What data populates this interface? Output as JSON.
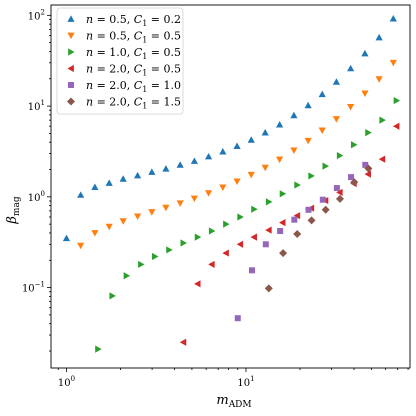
{
  "chart_data": {
    "type": "scatter",
    "title": "",
    "xlabel": "m_ADM",
    "ylabel": "β_mag",
    "xscale": "log",
    "yscale": "log",
    "xlim": [
      0.82,
      82
    ],
    "ylim": [
      0.013,
      130
    ],
    "grid": false,
    "legend_position": "top-left",
    "x_tick_labels": [
      "10^0",
      "10^1"
    ],
    "y_tick_labels": [
      "10^-1",
      "10^0",
      "10^1",
      "10^2"
    ],
    "series": [
      {
        "name": "n = 0.5, C_1 = 0.2",
        "marker": "triangle-up",
        "color": "#1f77b4",
        "x": [
          1.0,
          1.2,
          1.44,
          1.73,
          2.07,
          2.49,
          2.99,
          3.58,
          4.3,
          5.16,
          6.19,
          7.43,
          8.92,
          10.7,
          12.8,
          15.4,
          18.5,
          22.2,
          26.6,
          31.9,
          38.3,
          46.0,
          55.2,
          66.2
        ],
        "y": [
          0.35,
          1.05,
          1.28,
          1.42,
          1.58,
          1.72,
          1.88,
          2.04,
          2.25,
          2.48,
          2.78,
          3.15,
          3.62,
          4.25,
          5.1,
          6.25,
          7.9,
          10.2,
          13.5,
          18.5,
          26.0,
          38.0,
          57.0,
          92.0
        ]
      },
      {
        "name": "n = 0.5, C_1 = 0.5",
        "marker": "triangle-down",
        "color": "#ff7f0e",
        "x": [
          1.2,
          1.44,
          1.73,
          2.07,
          2.49,
          2.99,
          3.58,
          4.3,
          5.16,
          6.19,
          7.43,
          8.92,
          10.7,
          12.8,
          15.4,
          18.5,
          22.2,
          26.6,
          31.9,
          38.3,
          46.0,
          55.2,
          66.2
        ],
        "y": [
          0.29,
          0.4,
          0.47,
          0.54,
          0.61,
          0.68,
          0.76,
          0.85,
          0.96,
          1.1,
          1.27,
          1.48,
          1.75,
          2.1,
          2.58,
          3.25,
          4.15,
          5.4,
          7.2,
          9.8,
          13.8,
          19.8,
          30.0
        ]
      },
      {
        "name": "n = 1.0, C_1 = 0.5",
        "marker": "triangle-right",
        "color": "#2ca02c",
        "x": [
          1.5,
          1.8,
          2.16,
          2.6,
          3.11,
          3.73,
          4.48,
          5.38,
          6.45,
          7.74,
          9.29,
          11.1,
          13.4,
          16.0,
          19.3,
          23.1,
          27.7,
          33.3,
          39.9,
          47.9,
          57.5,
          69.0
        ],
        "y": [
          0.021,
          0.081,
          0.135,
          0.18,
          0.22,
          0.26,
          0.31,
          0.36,
          0.42,
          0.5,
          0.6,
          0.73,
          0.88,
          1.08,
          1.35,
          1.7,
          2.18,
          2.85,
          3.75,
          5.1,
          7.0,
          11.5
        ]
      },
      {
        "name": "n = 2.0, C_1 = 0.5",
        "marker": "triangle-left",
        "color": "#d62728",
        "x": [
          4.48,
          5.38,
          6.45,
          7.74,
          9.29,
          11.1,
          13.4,
          16.0,
          19.3,
          23.1,
          27.7,
          33.3,
          39.9,
          47.9,
          57.5,
          69.0
        ],
        "y": [
          0.025,
          0.11,
          0.18,
          0.24,
          0.3,
          0.36,
          0.43,
          0.52,
          0.62,
          0.75,
          0.91,
          1.12,
          1.4,
          1.78,
          2.6,
          6.0
        ]
      },
      {
        "name": "n = 2.0, C_1 = 1.0",
        "marker": "square",
        "color": "#9467bd",
        "x": [
          9.0,
          10.8,
          12.9,
          15.5,
          18.6,
          22.3,
          26.8,
          32.1,
          38.5,
          46.2
        ],
        "y": [
          0.046,
          0.155,
          0.3,
          0.42,
          0.56,
          0.72,
          0.93,
          1.25,
          1.65,
          2.25
        ]
      },
      {
        "name": "n = 2.0, C_1 = 1.5",
        "marker": "diamond",
        "color": "#8c564b",
        "x": [
          13.4,
          16.1,
          19.3,
          23.2,
          27.8,
          33.4,
          40.1,
          48.1
        ],
        "y": [
          0.098,
          0.24,
          0.39,
          0.55,
          0.72,
          0.95,
          1.45,
          2.05
        ]
      }
    ]
  }
}
